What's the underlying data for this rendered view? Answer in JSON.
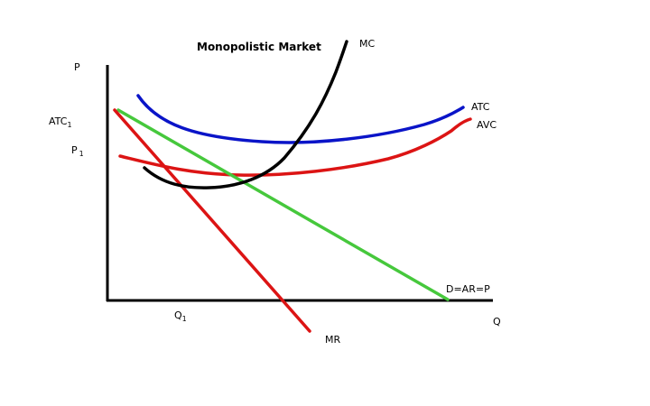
{
  "title": "Monopolistic Market",
  "colors": {
    "title": "#e46c0a",
    "axis": "#000000",
    "mc": "#000000",
    "atc": "#0a14c8",
    "avc": "#dc1414",
    "demand": "#46c83c",
    "mr": "#dc1414"
  },
  "axes": {
    "y_label": "P",
    "x_label": "Q"
  },
  "price_labels": {
    "atc_main": "ATC",
    "atc_sub": "1",
    "p_main": "P",
    "p_sub": "1"
  },
  "quantity_labels": {
    "q_main": "Q",
    "q_sub": "1"
  },
  "curves": {
    "mc": {
      "label": "MC"
    },
    "atc": {
      "label": "ATC"
    },
    "avc": {
      "label": "AVC"
    },
    "demand": {
      "label": "D=AR=P"
    },
    "mr": {
      "label": "MR"
    }
  }
}
